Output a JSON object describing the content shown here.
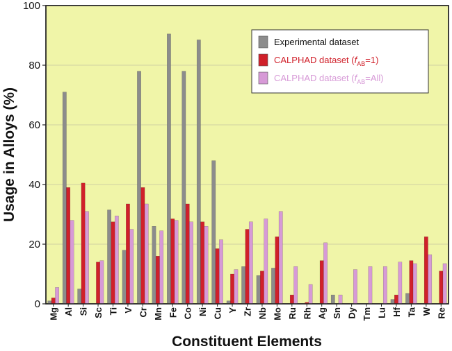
{
  "chart_data": {
    "type": "bar",
    "title": "",
    "xlabel": "Constituent Elements",
    "ylabel": "Usage in Alloys (%)",
    "ylim": [
      0,
      100
    ],
    "yticks": [
      "0",
      "20",
      "40",
      "60",
      "80",
      "100"
    ],
    "grid": true,
    "legend_position": "top-right",
    "categories": [
      "Mg",
      "Al",
      "Si",
      "Sc",
      "Ti",
      "V",
      "Cr",
      "Mn",
      "Fe",
      "Co",
      "Ni",
      "Cu",
      "Y",
      "Zr",
      "Nb",
      "Mo",
      "Ru",
      "Rh",
      "Ag",
      "Sn",
      "Dy",
      "Tm",
      "Lu",
      "Hf",
      "Ta",
      "W",
      "Re"
    ],
    "series": [
      {
        "name": "Experimental dataset",
        "color": "#8c8c8c",
        "values": [
          1,
          71,
          5,
          0,
          31.5,
          18,
          78,
          26,
          90.5,
          78,
          88.5,
          48,
          1,
          12.5,
          9.5,
          12,
          0,
          0,
          0,
          3,
          0,
          0,
          0,
          1.5,
          3.5,
          0,
          0
        ]
      },
      {
        "name": "CALPHAD dataset (f_AB=1)",
        "legend_prefix": "CALPHAD dataset (",
        "legend_f": "f",
        "legend_sub": "AB",
        "legend_suffix": "=1)",
        "color": "#d0202a",
        "values": [
          2,
          39,
          40.5,
          14,
          27.5,
          33.5,
          39,
          16,
          28.5,
          33.5,
          27.5,
          18.5,
          10,
          25,
          11,
          22.5,
          3,
          0.5,
          14.5,
          0,
          0,
          0,
          0,
          3,
          14.5,
          22.5,
          11
        ]
      },
      {
        "name": "CALPHAD dataset (f_AB=All)",
        "legend_prefix": "CALPHAD dataset (",
        "legend_f": "f",
        "legend_sub": "AB",
        "legend_suffix": "=All)",
        "color": "#d79ad7",
        "values": [
          5.5,
          28,
          31,
          14.5,
          29.5,
          25,
          33.5,
          24.5,
          28,
          27.5,
          26,
          21.5,
          11.5,
          27.5,
          28.5,
          31,
          12.5,
          6.5,
          20.5,
          3,
          11.5,
          12.5,
          12.5,
          14,
          13.5,
          16.5,
          13.5
        ]
      }
    ]
  },
  "colors": {
    "plot_background": "#f0f5a8",
    "grid": "#c4c4a0"
  }
}
